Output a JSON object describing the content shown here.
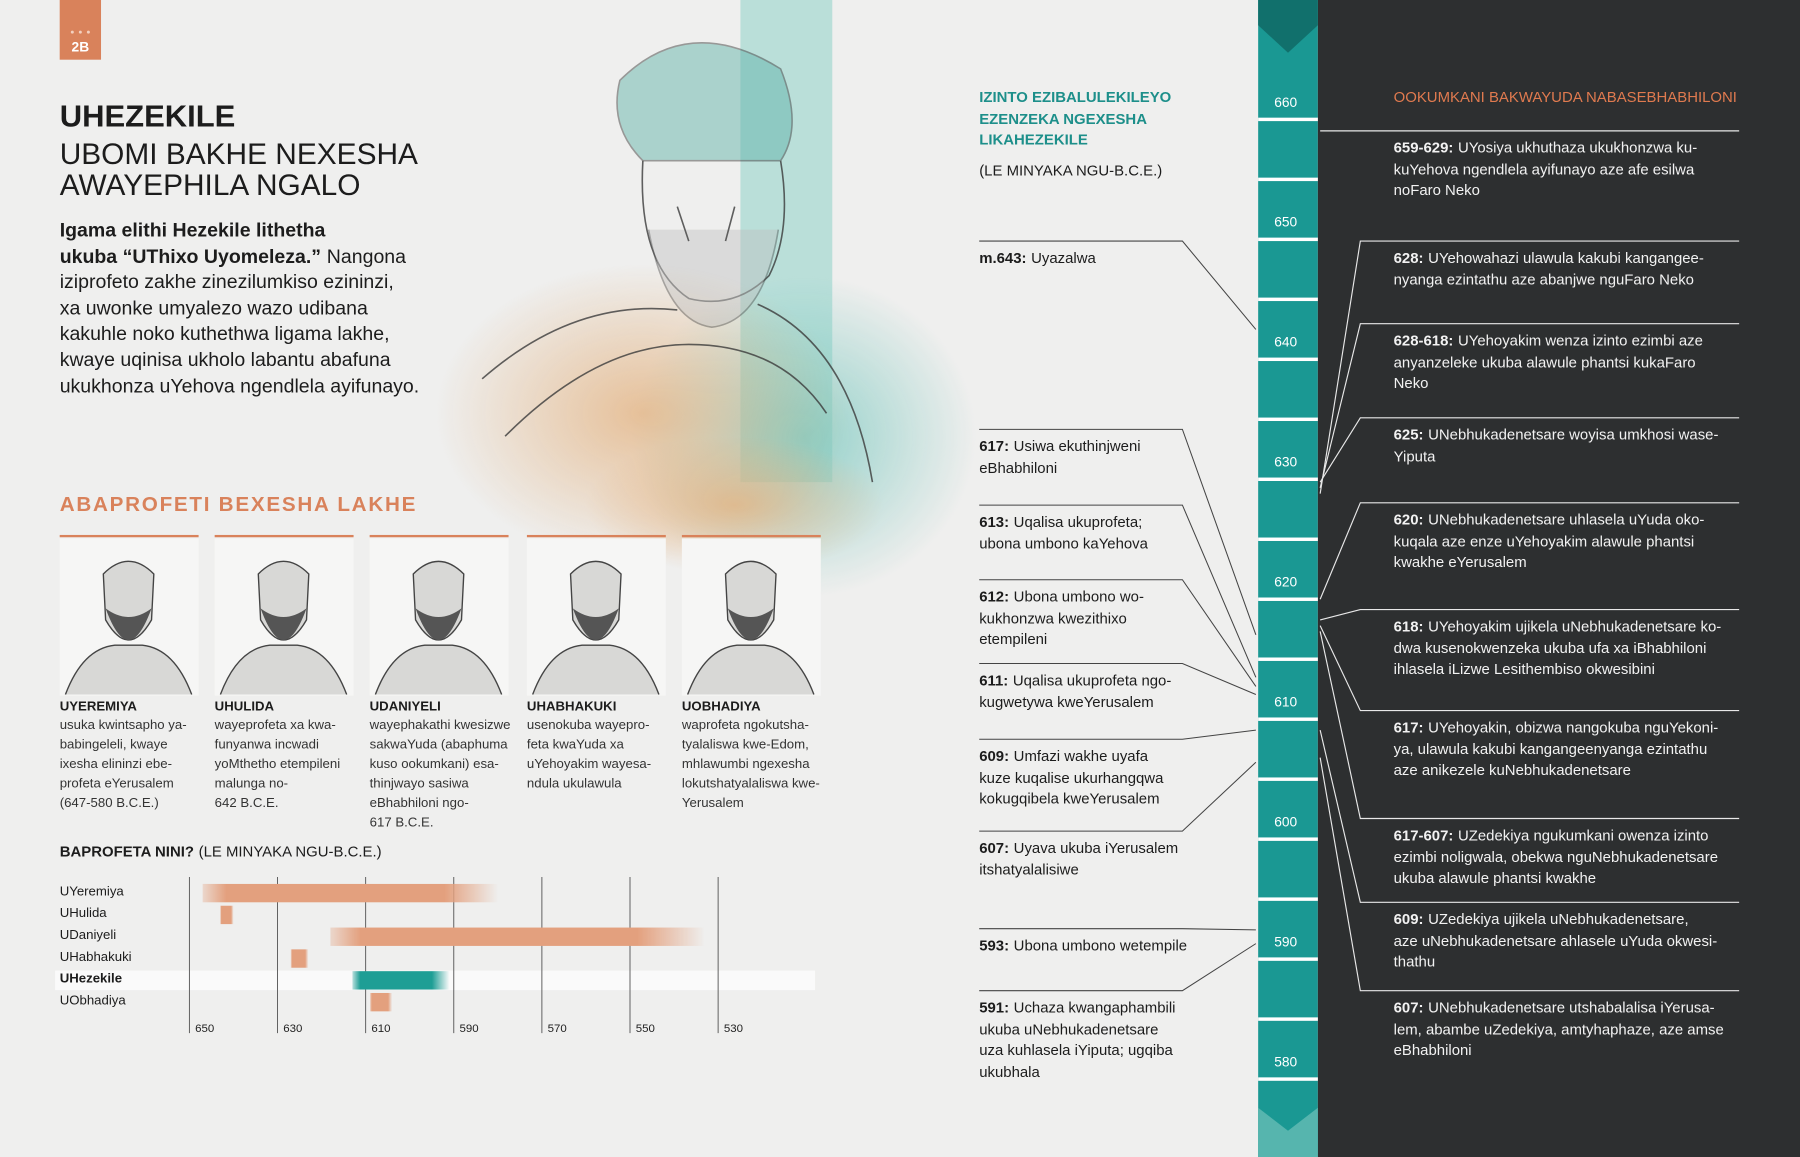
{
  "page_tag": "2B",
  "header": {
    "title": "UHEZEKILE",
    "subtitle_lines": [
      "UBOMI BAKHE NEXESHA",
      "AWAYEPHILA NGALO"
    ]
  },
  "intro": {
    "bold_lines": [
      "Igama elithi Hezekile lithetha",
      "ukuba “UThixo Uyomeleza.”"
    ],
    "text_lines": [
      "Nangona",
      "iziprofeto zakhe zinezilumkiso ezininzi,",
      "xa uwonke umyalezo wazo udibana",
      "kakuhle noko kuthethwa ligama lakhe,",
      "kwaye uqinisa ukholo labantu abafuna",
      "ukukhonza uYehova ngendlela ayifunayo."
    ]
  },
  "prophets": {
    "title": "ABAPROFETI BEXESHA LAKHE",
    "items": [
      {
        "name": "UYEREMIYA",
        "lines": [
          "usuka kwintsapho ya-",
          "babingeleli, kwaye",
          "ixesha elininzi ebe-",
          "profeta eYerusalem",
          "(647-580 B.C.E.)"
        ]
      },
      {
        "name": "UHULIDA",
        "lines": [
          "wayeprofeta xa kwa-",
          "funyanwa incwadi",
          "yoMthetho etempileni",
          "malunga no-",
          "642 B.C.E."
        ]
      },
      {
        "name": "UDANIYELI",
        "lines": [
          "wayephakathi kwesizwe",
          "sakwaYuda (abaphuma",
          "kuso ookumkani) esa-",
          "thinjwayo sasiwa",
          "eBhabhiloni ngo-",
          "617 B.C.E."
        ]
      },
      {
        "name": "UHABHAKUKI",
        "lines": [
          "usenokuba wayepro-",
          "feta kwaYuda xa",
          "uYehoyakim wayesa-",
          "ndula ukulawula"
        ]
      },
      {
        "name": "UOBHADIYA",
        "lines": [
          "waprofeta ngokutsha-",
          "tyalaliswa kwe-Edom,",
          "mhlawumbi ngexesha",
          "lokutshatyalaliswa kwe-",
          "Yerusalem"
        ]
      }
    ]
  },
  "timeline_chart": {
    "type": "range-bar",
    "title": "BAPROFETA NINI?",
    "subtitle": "(LE MINYAKA NGU-B.C.E.)",
    "categories": [
      "UYeremiya",
      "UHulida",
      "UDaniyeli",
      "UHabhakuki",
      "UHezekile",
      "UObhadiya"
    ],
    "starts": [
      647,
      643,
      618,
      627,
      613,
      609
    ],
    "ends": [
      580,
      640,
      533,
      623,
      591,
      604
    ],
    "xlim": [
      650,
      508
    ],
    "xticks": [
      650,
      630,
      610,
      590,
      570,
      550,
      530
    ],
    "bar_color": "#e3a07e",
    "highlight": 4,
    "highlight_color": "#1e9e95"
  },
  "events": {
    "title_lines": [
      "IZINTO EZIBALULEKILEYO",
      "EZENZEKA NGEXESHA",
      "LIKAHEZEKILE"
    ],
    "note": "(LE MINYAKA NGU-B.C.E.)",
    "items": [
      {
        "label": "m.643:",
        "lines": [
          "Uyazalwa"
        ]
      },
      {
        "label": "617:",
        "lines": [
          "Usiwa ekuthinjweni",
          "eBhabhiloni"
        ]
      },
      {
        "label": "613:",
        "lines": [
          "Uqalisa ukuprofeta;",
          "ubona umbono kaYehova"
        ]
      },
      {
        "label": "612:",
        "lines": [
          "Ubona umbono wo-",
          "kukhonzwa kwezithixo",
          "etempileni"
        ]
      },
      {
        "label": "611:",
        "lines": [
          "Uqalisa ukuprofeta ngo-",
          "kugwetywa kweYerusalem"
        ]
      },
      {
        "label": "609:",
        "lines": [
          "Umfazi wakhe uyafa",
          "kuze kuqalise ukurhangqwa",
          "kokugqibela kweYerusalem"
        ]
      },
      {
        "label": "607:",
        "lines": [
          "Uyava ukuba iYerusalem",
          "itshatyalalisiwe"
        ]
      },
      {
        "label": "593:",
        "lines": [
          "Ubona umbono wetempile"
        ]
      },
      {
        "label": "591:",
        "lines": [
          "Uchaza kwangaphambili",
          "ukuba uNebhukadenetsare",
          "uza kuhlasela iYiputa; ugqiba",
          "ukubhala"
        ]
      }
    ]
  },
  "year_scale": [
    "660",
    "650",
    "640",
    "630",
    "620",
    "610",
    "600",
    "590",
    "580"
  ],
  "kings": {
    "title": "OOKUMKANI BAKWAYUDA NABASEBHABHILONI",
    "items": [
      {
        "label": "659-629:",
        "lines": [
          "UYosiya ukhuthaza ukukhonzwa ku-",
          "kuYehova ngendlela ayifunayo aze afe esilwa",
          "noFaro Neko"
        ]
      },
      {
        "label": "628:",
        "lines": [
          "UYehowahazi ulawula kakubi kangangee-",
          "nyanga ezintathu aze abanjwe nguFaro Neko"
        ]
      },
      {
        "label": "628-618:",
        "lines": [
          "UYehoyakim wenza izinto ezimbi aze",
          "anyanzeleke ukuba alawule phantsi kukaFaro",
          "Neko"
        ]
      },
      {
        "label": "625:",
        "lines": [
          "UNebhukadenetsare woyisa umkhosi wase-",
          "Yiputa"
        ]
      },
      {
        "label": "620:",
        "lines": [
          "UNebhukadenetsare uhlasela uYuda oko-",
          "kuqala aze enze uYehoyakim alawule phantsi",
          "kwakhe eYerusalem"
        ]
      },
      {
        "label": "618:",
        "lines": [
          "UYehoyakim ujikela uNebhukadenetsare ko-",
          "dwa kusenokwenzeka ukuba ufa xa iBhabhiloni",
          "ihlasela iLizwe Lesithembiso okwesibini"
        ]
      },
      {
        "label": "617:",
        "lines": [
          "UYehoyakin, obizwa nangokuba nguYekoni-",
          "ya, ulawula kakubi kangangeenyanga ezintathu",
          "aze anikezele kuNebhukadenetsare"
        ]
      },
      {
        "label": "617-607:",
        "lines": [
          "UZedekiya ngukumkani owenza izinto",
          "ezimbi noligwala, obekwa nguNebhukadenetsare",
          "ukuba alawule phantsi kwakhe"
        ]
      },
      {
        "label": "609:",
        "lines": [
          "UZedekiya ujikela uNebhukadenetsare,",
          "aze uNebhukadenetsare ahlasele uYuda okwesi-",
          "thathu"
        ]
      },
      {
        "label": "607:",
        "lines": [
          "UNebhukadenetsare utshabalalisa iYerusa-",
          "lem, abambe uZedekiya, amtyhaphaze, aze amse",
          "eBhabhiloni"
        ]
      }
    ]
  }
}
